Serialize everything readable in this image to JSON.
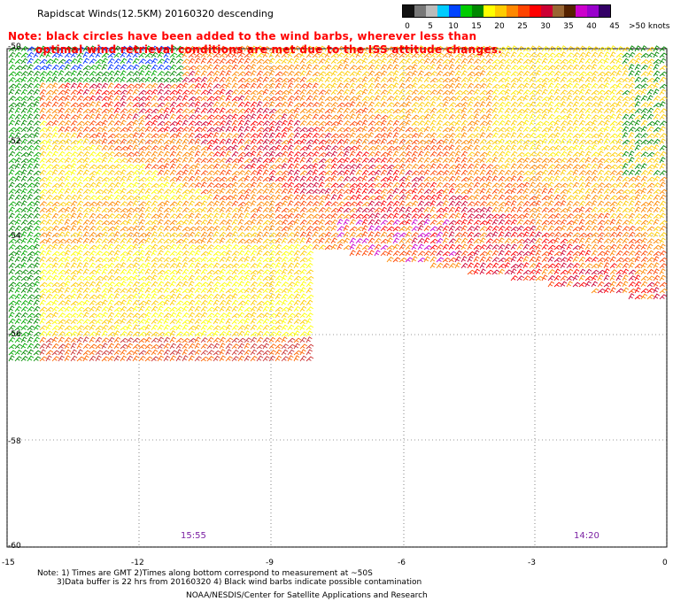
{
  "title": "Rapidscat Winds(12.5KM) 20160320 descending",
  "note_line1": "Note: black circles have been added to the wind barbs, wherever less than",
  "note_line2": "optimal wind retrieval conditions are met due to the ISS attitude changes.",
  "legend": {
    "labels": [
      "0",
      "5",
      "10",
      "15",
      "20",
      "25",
      "30",
      "35",
      "40",
      "45",
      ">50 knots"
    ],
    "colors": [
      "#111111",
      "#777777",
      "#bbbbbb",
      "#00ccff",
      "#0044ff",
      "#00cc00",
      "#008800",
      "#ffff00",
      "#ffcc00",
      "#ff8800",
      "#ff4400",
      "#ff0000",
      "#cc0033",
      "#996633",
      "#552200",
      "#cc00cc",
      "#9900cc",
      "#330066"
    ]
  },
  "lat_labels": [
    "-50",
    "-52",
    "-54",
    "-56",
    "-58",
    "-60"
  ],
  "lon_labels": [
    "-15",
    "-12",
    "-9",
    "-6",
    "-3",
    "0"
  ],
  "time_labels": [
    "15:55",
    "14:20"
  ],
  "footer": {
    "line1": "Note: 1) Times are GMT 2)Times along bottom correspond to measurement at ~50S",
    "line2": "3)Data buffer is 22 hrs from 20160320 4) Black wind barbs indicate possible contamination",
    "line3": "NOAA/NESDIS/Center for Satellite Applications and Research"
  }
}
